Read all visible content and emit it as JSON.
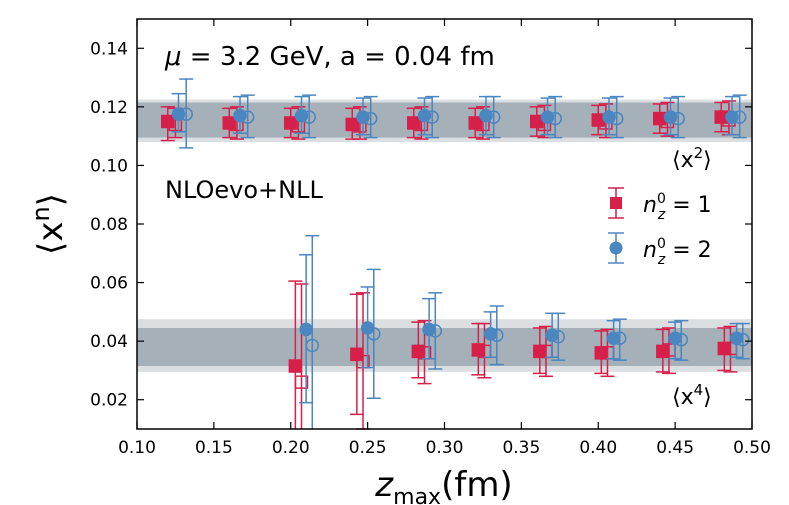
{
  "chart_data": {
    "type": "scatter",
    "xlabel_main": "z",
    "xlabel_sub": "max",
    "xlabel_unit": "(fm)",
    "ylabel_base": "⟨x",
    "ylabel_sup": "n",
    "ylabel_end": "⟩",
    "xlim": [
      0.1,
      0.5
    ],
    "ylim": [
      0.01,
      0.15
    ],
    "x_ticks": [
      "0.10",
      "0.15",
      "0.20",
      "0.25",
      "0.30",
      "0.35",
      "0.40",
      "0.45",
      "0.50"
    ],
    "x_tick_values": [
      0.1,
      0.15,
      0.2,
      0.25,
      0.3,
      0.35,
      0.4,
      0.45,
      0.5
    ],
    "y_ticks": [
      "0.02",
      "0.04",
      "0.06",
      "0.08",
      "0.10",
      "0.12",
      "0.14"
    ],
    "y_tick_values": [
      0.02,
      0.04,
      0.06,
      0.08,
      0.1,
      0.12,
      0.14
    ],
    "annotation_scale": {
      "mu_symbol": "μ",
      "rest": " = 3.2 GeV, a = 0.04 fm"
    },
    "annotation_method": "NLOevo+NLL",
    "moment_labels": [
      {
        "base": "⟨x",
        "sup": "2",
        "end": "⟩"
      },
      {
        "base": "⟨x",
        "sup": "4",
        "end": "⟩"
      }
    ],
    "bands": [
      {
        "moment": "x2",
        "center": 0.1155,
        "inner": [
          0.1095,
          0.1215
        ],
        "outer": [
          0.108,
          0.1225
        ]
      },
      {
        "moment": "x4",
        "center": 0.0385,
        "inner": [
          0.0315,
          0.0445
        ],
        "outer": [
          0.0295,
          0.0475
        ]
      }
    ],
    "colors": {
      "red": "#d6204a",
      "blue": "#4a86c0",
      "band_inner": "#a6b0b9",
      "band_outer": "#dcdfe2"
    },
    "series": [
      {
        "name": "n_z^0 = 1",
        "legend_sym": "n",
        "legend_sup": "0",
        "legend_sub": "z",
        "legend_rest": " = 1",
        "color": "#d6204a",
        "marker": "square",
        "points": [
          {
            "x": 0.12,
            "y": 0.115,
            "lo": 0.1085,
            "hi": 0.12,
            "hollow": false
          },
          {
            "x": 0.125,
            "y": 0.114,
            "lo": 0.1095,
            "hi": 0.1195,
            "hollow": true
          },
          {
            "x": 0.16,
            "y": 0.1145,
            "lo": 0.1095,
            "hi": 0.1195,
            "hollow": false
          },
          {
            "x": 0.165,
            "y": 0.114,
            "lo": 0.109,
            "hi": 0.12,
            "hollow": true
          },
          {
            "x": 0.2,
            "y": 0.1145,
            "lo": 0.1095,
            "hi": 0.1195,
            "hollow": false
          },
          {
            "x": 0.205,
            "y": 0.1135,
            "lo": 0.109,
            "hi": 0.12,
            "hollow": true
          },
          {
            "x": 0.24,
            "y": 0.114,
            "lo": 0.109,
            "hi": 0.1195,
            "hollow": false
          },
          {
            "x": 0.245,
            "y": 0.1135,
            "lo": 0.109,
            "hi": 0.12,
            "hollow": true
          },
          {
            "x": 0.28,
            "y": 0.1145,
            "lo": 0.1095,
            "hi": 0.1195,
            "hollow": false
          },
          {
            "x": 0.285,
            "y": 0.114,
            "lo": 0.109,
            "hi": 0.12,
            "hollow": true
          },
          {
            "x": 0.32,
            "y": 0.1145,
            "lo": 0.1095,
            "hi": 0.1195,
            "hollow": false
          },
          {
            "x": 0.325,
            "y": 0.114,
            "lo": 0.109,
            "hi": 0.12,
            "hollow": true
          },
          {
            "x": 0.36,
            "y": 0.115,
            "lo": 0.11,
            "hi": 0.12,
            "hollow": false
          },
          {
            "x": 0.365,
            "y": 0.114,
            "lo": 0.1095,
            "hi": 0.1205,
            "hollow": true
          },
          {
            "x": 0.4,
            "y": 0.1155,
            "lo": 0.1105,
            "hi": 0.1205,
            "hollow": false
          },
          {
            "x": 0.405,
            "y": 0.1145,
            "lo": 0.1095,
            "hi": 0.121,
            "hollow": true
          },
          {
            "x": 0.44,
            "y": 0.116,
            "lo": 0.111,
            "hi": 0.121,
            "hollow": false
          },
          {
            "x": 0.445,
            "y": 0.115,
            "lo": 0.11,
            "hi": 0.1215,
            "hollow": true
          },
          {
            "x": 0.48,
            "y": 0.1165,
            "lo": 0.1115,
            "hi": 0.1215,
            "hollow": false
          },
          {
            "x": 0.485,
            "y": 0.1155,
            "lo": 0.1105,
            "hi": 0.122,
            "hollow": true
          },
          {
            "x": 0.203,
            "y": 0.0315,
            "lo": 0.003,
            "hi": 0.0605,
            "hollow": false
          },
          {
            "x": 0.207,
            "y": 0.026,
            "lo": 0.001,
            "hi": 0.0595,
            "hollow": true
          },
          {
            "x": 0.243,
            "y": 0.0355,
            "lo": 0.015,
            "hi": 0.056,
            "hollow": false
          },
          {
            "x": 0.247,
            "y": 0.033,
            "lo": 0.01,
            "hi": 0.0565,
            "hollow": true
          },
          {
            "x": 0.283,
            "y": 0.0365,
            "lo": 0.0275,
            "hi": 0.0465,
            "hollow": false
          },
          {
            "x": 0.287,
            "y": 0.036,
            "lo": 0.0255,
            "hi": 0.047,
            "hollow": true
          },
          {
            "x": 0.322,
            "y": 0.037,
            "lo": 0.0285,
            "hi": 0.046,
            "hollow": false
          },
          {
            "x": 0.326,
            "y": 0.0365,
            "lo": 0.0275,
            "hi": 0.046,
            "hollow": true
          },
          {
            "x": 0.362,
            "y": 0.0365,
            "lo": 0.029,
            "hi": 0.0445,
            "hollow": false
          },
          {
            "x": 0.366,
            "y": 0.0365,
            "lo": 0.028,
            "hi": 0.045,
            "hollow": true
          },
          {
            "x": 0.402,
            "y": 0.036,
            "lo": 0.029,
            "hi": 0.0435,
            "hollow": false
          },
          {
            "x": 0.406,
            "y": 0.036,
            "lo": 0.028,
            "hi": 0.044,
            "hollow": true
          },
          {
            "x": 0.442,
            "y": 0.0365,
            "lo": 0.0295,
            "hi": 0.044,
            "hollow": false
          },
          {
            "x": 0.446,
            "y": 0.037,
            "lo": 0.029,
            "hi": 0.0445,
            "hollow": true
          },
          {
            "x": 0.482,
            "y": 0.0375,
            "lo": 0.03,
            "hi": 0.0445,
            "hollow": false
          },
          {
            "x": 0.486,
            "y": 0.0375,
            "lo": 0.0295,
            "hi": 0.045,
            "hollow": true
          }
        ]
      },
      {
        "name": "n_z^0 = 2",
        "legend_sym": "n",
        "legend_sup": "0",
        "legend_sub": "z",
        "legend_rest": " = 2",
        "color": "#4a86c0",
        "marker": "circle",
        "points": [
          {
            "x": 0.127,
            "y": 0.1175,
            "lo": 0.1115,
            "hi": 0.1245,
            "hollow": false
          },
          {
            "x": 0.132,
            "y": 0.1175,
            "lo": 0.106,
            "hi": 0.1295,
            "hollow": true
          },
          {
            "x": 0.167,
            "y": 0.117,
            "lo": 0.111,
            "hi": 0.1235,
            "hollow": false
          },
          {
            "x": 0.172,
            "y": 0.1165,
            "lo": 0.1095,
            "hi": 0.124,
            "hollow": true
          },
          {
            "x": 0.207,
            "y": 0.117,
            "lo": 0.111,
            "hi": 0.1235,
            "hollow": false
          },
          {
            "x": 0.212,
            "y": 0.1165,
            "lo": 0.1095,
            "hi": 0.124,
            "hollow": true
          },
          {
            "x": 0.247,
            "y": 0.1165,
            "lo": 0.1105,
            "hi": 0.123,
            "hollow": false
          },
          {
            "x": 0.252,
            "y": 0.116,
            "lo": 0.1095,
            "hi": 0.1235,
            "hollow": true
          },
          {
            "x": 0.287,
            "y": 0.117,
            "lo": 0.1105,
            "hi": 0.123,
            "hollow": false
          },
          {
            "x": 0.292,
            "y": 0.1165,
            "lo": 0.1095,
            "hi": 0.1235,
            "hollow": true
          },
          {
            "x": 0.327,
            "y": 0.117,
            "lo": 0.1105,
            "hi": 0.1235,
            "hollow": false
          },
          {
            "x": 0.332,
            "y": 0.1165,
            "lo": 0.1095,
            "hi": 0.1235,
            "hollow": true
          },
          {
            "x": 0.367,
            "y": 0.1165,
            "lo": 0.1105,
            "hi": 0.123,
            "hollow": false
          },
          {
            "x": 0.372,
            "y": 0.116,
            "lo": 0.1095,
            "hi": 0.1235,
            "hollow": true
          },
          {
            "x": 0.407,
            "y": 0.1165,
            "lo": 0.1105,
            "hi": 0.123,
            "hollow": false
          },
          {
            "x": 0.412,
            "y": 0.116,
            "lo": 0.1095,
            "hi": 0.1235,
            "hollow": true
          },
          {
            "x": 0.447,
            "y": 0.1165,
            "lo": 0.1105,
            "hi": 0.123,
            "hollow": false
          },
          {
            "x": 0.452,
            "y": 0.116,
            "lo": 0.1095,
            "hi": 0.1235,
            "hollow": true
          },
          {
            "x": 0.487,
            "y": 0.1165,
            "lo": 0.1105,
            "hi": 0.1235,
            "hollow": false
          },
          {
            "x": 0.492,
            "y": 0.1165,
            "lo": 0.1095,
            "hi": 0.124,
            "hollow": true
          },
          {
            "x": 0.21,
            "y": 0.044,
            "lo": 0.019,
            "hi": 0.0695,
            "hollow": false
          },
          {
            "x": 0.214,
            "y": 0.0385,
            "lo": 0.001,
            "hi": 0.076,
            "hollow": true
          },
          {
            "x": 0.25,
            "y": 0.0445,
            "lo": 0.031,
            "hi": 0.0585,
            "hollow": false
          },
          {
            "x": 0.254,
            "y": 0.0425,
            "lo": 0.0205,
            "hi": 0.0645,
            "hollow": true
          },
          {
            "x": 0.29,
            "y": 0.044,
            "lo": 0.034,
            "hi": 0.0545,
            "hollow": false
          },
          {
            "x": 0.294,
            "y": 0.0435,
            "lo": 0.0305,
            "hi": 0.0565,
            "hollow": true
          },
          {
            "x": 0.33,
            "y": 0.0425,
            "lo": 0.0345,
            "hi": 0.05,
            "hollow": false
          },
          {
            "x": 0.334,
            "y": 0.042,
            "lo": 0.032,
            "hi": 0.052,
            "hollow": true
          },
          {
            "x": 0.37,
            "y": 0.042,
            "lo": 0.0345,
            "hi": 0.0495,
            "hollow": false
          },
          {
            "x": 0.374,
            "y": 0.0415,
            "lo": 0.0335,
            "hi": 0.0495,
            "hollow": true
          },
          {
            "x": 0.41,
            "y": 0.041,
            "lo": 0.034,
            "hi": 0.047,
            "hollow": false
          },
          {
            "x": 0.414,
            "y": 0.041,
            "lo": 0.0335,
            "hi": 0.0475,
            "hollow": true
          },
          {
            "x": 0.45,
            "y": 0.041,
            "lo": 0.034,
            "hi": 0.0465,
            "hollow": false
          },
          {
            "x": 0.454,
            "y": 0.0405,
            "lo": 0.0335,
            "hi": 0.047,
            "hollow": true
          },
          {
            "x": 0.49,
            "y": 0.041,
            "lo": 0.0345,
            "hi": 0.046,
            "hollow": false
          },
          {
            "x": 0.494,
            "y": 0.0405,
            "lo": 0.034,
            "hi": 0.046,
            "hollow": true
          }
        ]
      }
    ]
  }
}
